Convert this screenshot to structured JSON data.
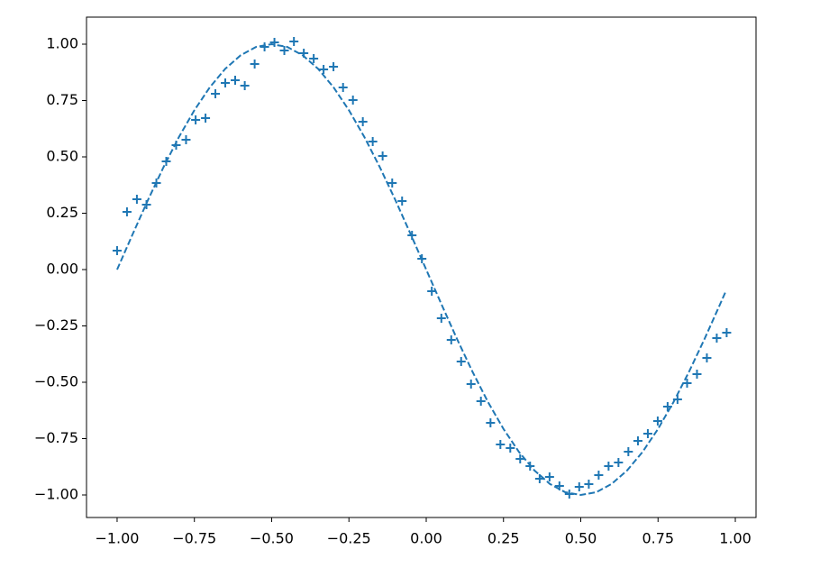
{
  "chart_data": {
    "type": "line",
    "xlim": [
      -1.099,
      1.067
    ],
    "ylim": [
      -1.1,
      1.12
    ],
    "xticks": [
      {
        "value": -1,
        "label": "−1.00"
      },
      {
        "value": -0.75,
        "label": "−0.75"
      },
      {
        "value": -0.5,
        "label": "−0.50"
      },
      {
        "value": -0.25,
        "label": "−0.25"
      },
      {
        "value": 0,
        "label": "0.00"
      },
      {
        "value": 0.25,
        "label": "0.25"
      },
      {
        "value": 0.5,
        "label": "0.50"
      },
      {
        "value": 0.75,
        "label": "0.75"
      },
      {
        "value": 1,
        "label": "1.00"
      }
    ],
    "yticks": [
      {
        "value": -1,
        "label": "−1.00"
      },
      {
        "value": -0.75,
        "label": "−0.75"
      },
      {
        "value": -0.5,
        "label": "−0.50"
      },
      {
        "value": -0.25,
        "label": "−0.25"
      },
      {
        "value": 0,
        "label": "0.00"
      },
      {
        "value": 0.25,
        "label": "0.25"
      },
      {
        "value": 0.5,
        "label": "0.50"
      },
      {
        "value": 0.75,
        "label": "0.75"
      },
      {
        "value": 1,
        "label": "1.00"
      }
    ],
    "grid": false,
    "series": [
      {
        "type": "line",
        "style": "dashed",
        "color": "#1f77b4",
        "x": [
          -1,
          -0.95,
          -0.9,
          -0.85,
          -0.8,
          -0.75,
          -0.7,
          -0.65,
          -0.6,
          -0.55,
          -0.5,
          -0.45,
          -0.4,
          -0.35,
          -0.3,
          -0.25,
          -0.2,
          -0.15,
          -0.1,
          -0.05,
          0,
          0.05,
          0.1,
          0.15,
          0.2,
          0.25,
          0.3,
          0.35,
          0.4,
          0.45,
          0.5,
          0.55,
          0.6,
          0.65,
          0.7,
          0.75,
          0.8,
          0.85,
          0.9,
          0.95,
          0.97
        ],
        "values": [
          0,
          0.156,
          0.309,
          0.454,
          0.588,
          0.707,
          0.809,
          0.891,
          0.951,
          0.988,
          1,
          0.988,
          0.951,
          0.891,
          0.809,
          0.707,
          0.588,
          0.454,
          0.309,
          0.156,
          0,
          -0.156,
          -0.309,
          -0.454,
          -0.588,
          -0.707,
          -0.809,
          -0.891,
          -0.951,
          -0.988,
          -1,
          -0.988,
          -0.951,
          -0.891,
          -0.809,
          -0.707,
          -0.588,
          -0.454,
          -0.309,
          -0.156,
          -0.094
        ]
      },
      {
        "type": "scatter",
        "marker": "+",
        "color": "#1f77b4",
        "x": [
          -1,
          -0.968,
          -0.936,
          -0.905,
          -0.873,
          -0.841,
          -0.809,
          -0.777,
          -0.746,
          -0.714,
          -0.682,
          -0.65,
          -0.618,
          -0.587,
          -0.555,
          -0.523,
          -0.491,
          -0.459,
          -0.428,
          -0.396,
          -0.364,
          -0.332,
          -0.3,
          -0.269,
          -0.237,
          -0.205,
          -0.173,
          -0.141,
          -0.11,
          -0.078,
          -0.046,
          -0.014,
          0.018,
          0.049,
          0.081,
          0.113,
          0.145,
          0.177,
          0.208,
          0.24,
          0.272,
          0.304,
          0.336,
          0.367,
          0.399,
          0.431,
          0.463,
          0.495,
          0.526,
          0.558,
          0.59,
          0.622,
          0.654,
          0.685,
          0.717,
          0.749,
          0.781,
          0.813,
          0.844,
          0.876,
          0.908,
          0.94,
          0.972
        ],
        "values": [
          0.084,
          0.256,
          0.312,
          0.288,
          0.384,
          0.48,
          0.552,
          0.576,
          0.664,
          0.672,
          0.78,
          0.828,
          0.84,
          0.816,
          0.912,
          0.988,
          1.008,
          0.972,
          1.012,
          0.96,
          0.936,
          0.888,
          0.9,
          0.808,
          0.752,
          0.656,
          0.568,
          0.504,
          0.384,
          0.304,
          0.152,
          0.048,
          -0.096,
          -0.216,
          -0.312,
          -0.408,
          -0.508,
          -0.584,
          -0.68,
          -0.776,
          -0.792,
          -0.84,
          -0.872,
          -0.928,
          -0.92,
          -0.96,
          -0.996,
          -0.964,
          -0.952,
          -0.912,
          -0.872,
          -0.856,
          -0.808,
          -0.76,
          -0.728,
          -0.672,
          -0.608,
          -0.576,
          -0.504,
          -0.464,
          -0.392,
          -0.304,
          -0.28
        ]
      }
    ]
  }
}
